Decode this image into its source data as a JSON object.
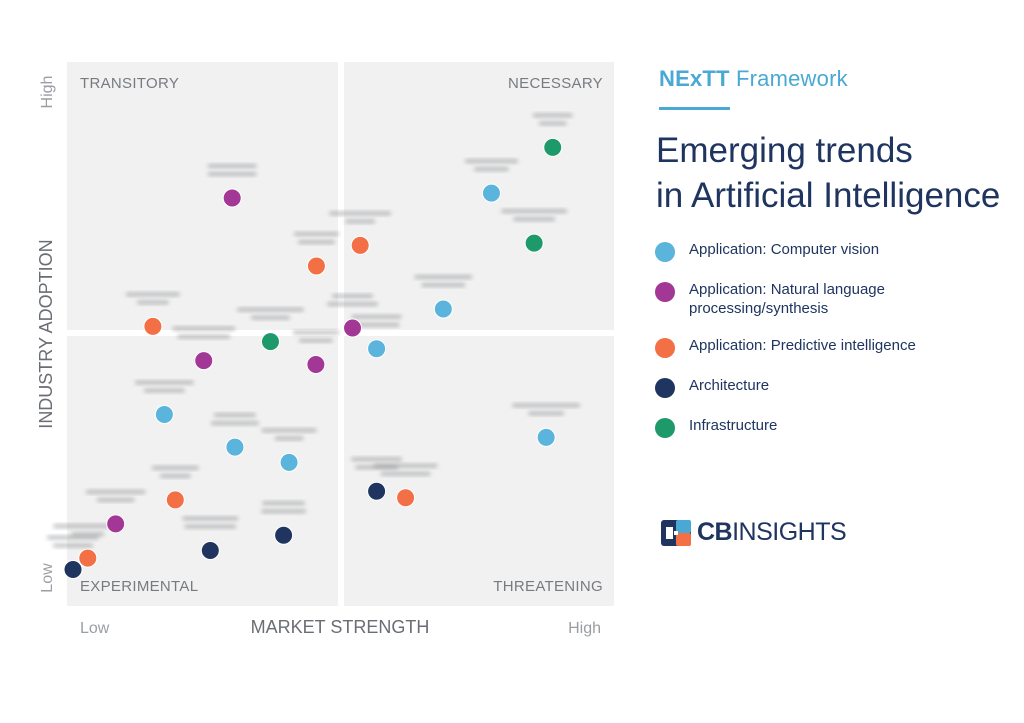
{
  "header": {
    "framework_bold": "NExTT",
    "framework_rest": "Framework",
    "title_line1": "Emerging trends",
    "title_line2": "in Artificial Intelligence"
  },
  "brand": {
    "bold": "CB",
    "rest": "INSIGHTS",
    "icon": "cbinsights-logo-icon"
  },
  "colors": {
    "computer_vision": "#5ab4dc",
    "nlp": "#a33796",
    "predictive": "#f36f45",
    "architecture": "#1f3560",
    "infrastructure": "#1e9a6a",
    "quadrant_bg": "#f1f1f1"
  },
  "legend": [
    {
      "key": "computer_vision",
      "label": "Application: Computer vision"
    },
    {
      "key": "nlp",
      "label": "Application: Natural language processing/synthesis"
    },
    {
      "key": "predictive",
      "label": "Application: Predictive intelligence"
    },
    {
      "key": "architecture",
      "label": "Architecture"
    },
    {
      "key": "infrastructure",
      "label": "Infrastructure"
    }
  ],
  "chart_data": {
    "type": "scatter",
    "xlabel": "MARKET STRENGTH",
    "ylabel": "INDUSTRY ADOPTION",
    "x_ticks": [
      "Low",
      "High"
    ],
    "y_ticks": [
      "Low",
      "High"
    ],
    "xlim": [
      0,
      1
    ],
    "ylim": [
      0,
      1
    ],
    "quadrants": {
      "top_left": "TRANSITORY",
      "top_right": "NECESSARY",
      "bottom_left": "EXPERIMENTAL",
      "bottom_right": "THREATENING"
    },
    "points": [
      {
        "category": "infrastructure",
        "x": 0.888,
        "y": 0.843
      },
      {
        "category": "computer_vision",
        "x": 0.776,
        "y": 0.759
      },
      {
        "category": "infrastructure",
        "x": 0.854,
        "y": 0.667
      },
      {
        "category": "nlp",
        "x": 0.302,
        "y": 0.75
      },
      {
        "category": "predictive",
        "x": 0.536,
        "y": 0.663
      },
      {
        "category": "predictive",
        "x": 0.456,
        "y": 0.625
      },
      {
        "category": "computer_vision",
        "x": 0.688,
        "y": 0.546
      },
      {
        "category": "nlp",
        "x": 0.522,
        "y": 0.511
      },
      {
        "category": "predictive",
        "x": 0.157,
        "y": 0.514
      },
      {
        "category": "infrastructure",
        "x": 0.372,
        "y": 0.486
      },
      {
        "category": "computer_vision",
        "x": 0.566,
        "y": 0.473
      },
      {
        "category": "nlp",
        "x": 0.25,
        "y": 0.451
      },
      {
        "category": "nlp",
        "x": 0.455,
        "y": 0.444
      },
      {
        "category": "computer_vision",
        "x": 0.178,
        "y": 0.352
      },
      {
        "category": "computer_vision",
        "x": 0.307,
        "y": 0.292
      },
      {
        "category": "computer_vision",
        "x": 0.406,
        "y": 0.264
      },
      {
        "category": "computer_vision",
        "x": 0.876,
        "y": 0.31
      },
      {
        "category": "architecture",
        "x": 0.566,
        "y": 0.211
      },
      {
        "category": "predictive",
        "x": 0.619,
        "y": 0.199
      },
      {
        "category": "predictive",
        "x": 0.198,
        "y": 0.195
      },
      {
        "category": "nlp",
        "x": 0.089,
        "y": 0.151
      },
      {
        "category": "architecture",
        "x": 0.396,
        "y": 0.13
      },
      {
        "category": "architecture",
        "x": 0.262,
        "y": 0.102
      },
      {
        "category": "predictive",
        "x": 0.038,
        "y": 0.088
      },
      {
        "category": "architecture",
        "x": 0.011,
        "y": 0.067
      }
    ]
  }
}
